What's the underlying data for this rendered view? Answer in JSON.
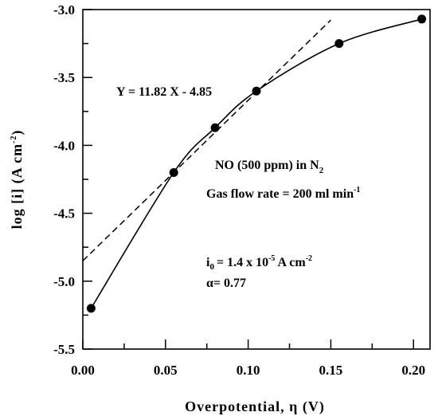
{
  "chart_data": {
    "type": "scatter",
    "title": "",
    "xlabel": "Overpotential, η (V)",
    "ylabel_parts": [
      "log [i] (A cm",
      "-2",
      ")"
    ],
    "xlim": [
      0.0,
      0.21
    ],
    "ylim": [
      -5.5,
      -3.0
    ],
    "x_ticks": [
      0.0,
      0.05,
      0.1,
      0.15,
      0.2
    ],
    "x_tick_labels": [
      "0.00",
      "0.05",
      "0.10",
      "0.15",
      "0.20"
    ],
    "y_ticks": [
      -3.0,
      -3.5,
      -4.0,
      -4.5,
      -5.0,
      -5.5
    ],
    "y_tick_labels": [
      "-3.0",
      "-3.5",
      "-4.0",
      "-4.5",
      "-5.0",
      "-5.5"
    ],
    "grid": false,
    "series": [
      {
        "kind": "points",
        "x": [
          0.005,
          0.055,
          0.08,
          0.105,
          0.155,
          0.205
        ],
        "y": [
          -5.2,
          -4.2,
          -3.87,
          -3.6,
          -3.25,
          -3.07
        ]
      },
      {
        "kind": "smooth-curve",
        "x": [
          0.005,
          0.055,
          0.08,
          0.105,
          0.155,
          0.205
        ],
        "y": [
          -5.2,
          -4.2,
          -3.87,
          -3.6,
          -3.25,
          -3.07
        ]
      },
      {
        "kind": "dashed-fit",
        "slope": 11.82,
        "intercept": -4.85,
        "x_range": [
          0.0,
          0.15
        ]
      }
    ],
    "annotations": {
      "fit_equation": "Y = 11.82 X - 4.85",
      "gas_prefix": "NO (500 ppm) in N",
      "gas_sub": "2",
      "flow_prefix": "Gas flow rate = 200 ml min",
      "flow_sup": "-1",
      "i0_main": "i",
      "i0_sub": "0",
      "i0_mid": "= 1.4 x 10",
      "i0_exp": "-5",
      "i0_unit": " A cm",
      "i0_unit_exp": "-2",
      "alpha": "α= 0.77"
    }
  }
}
